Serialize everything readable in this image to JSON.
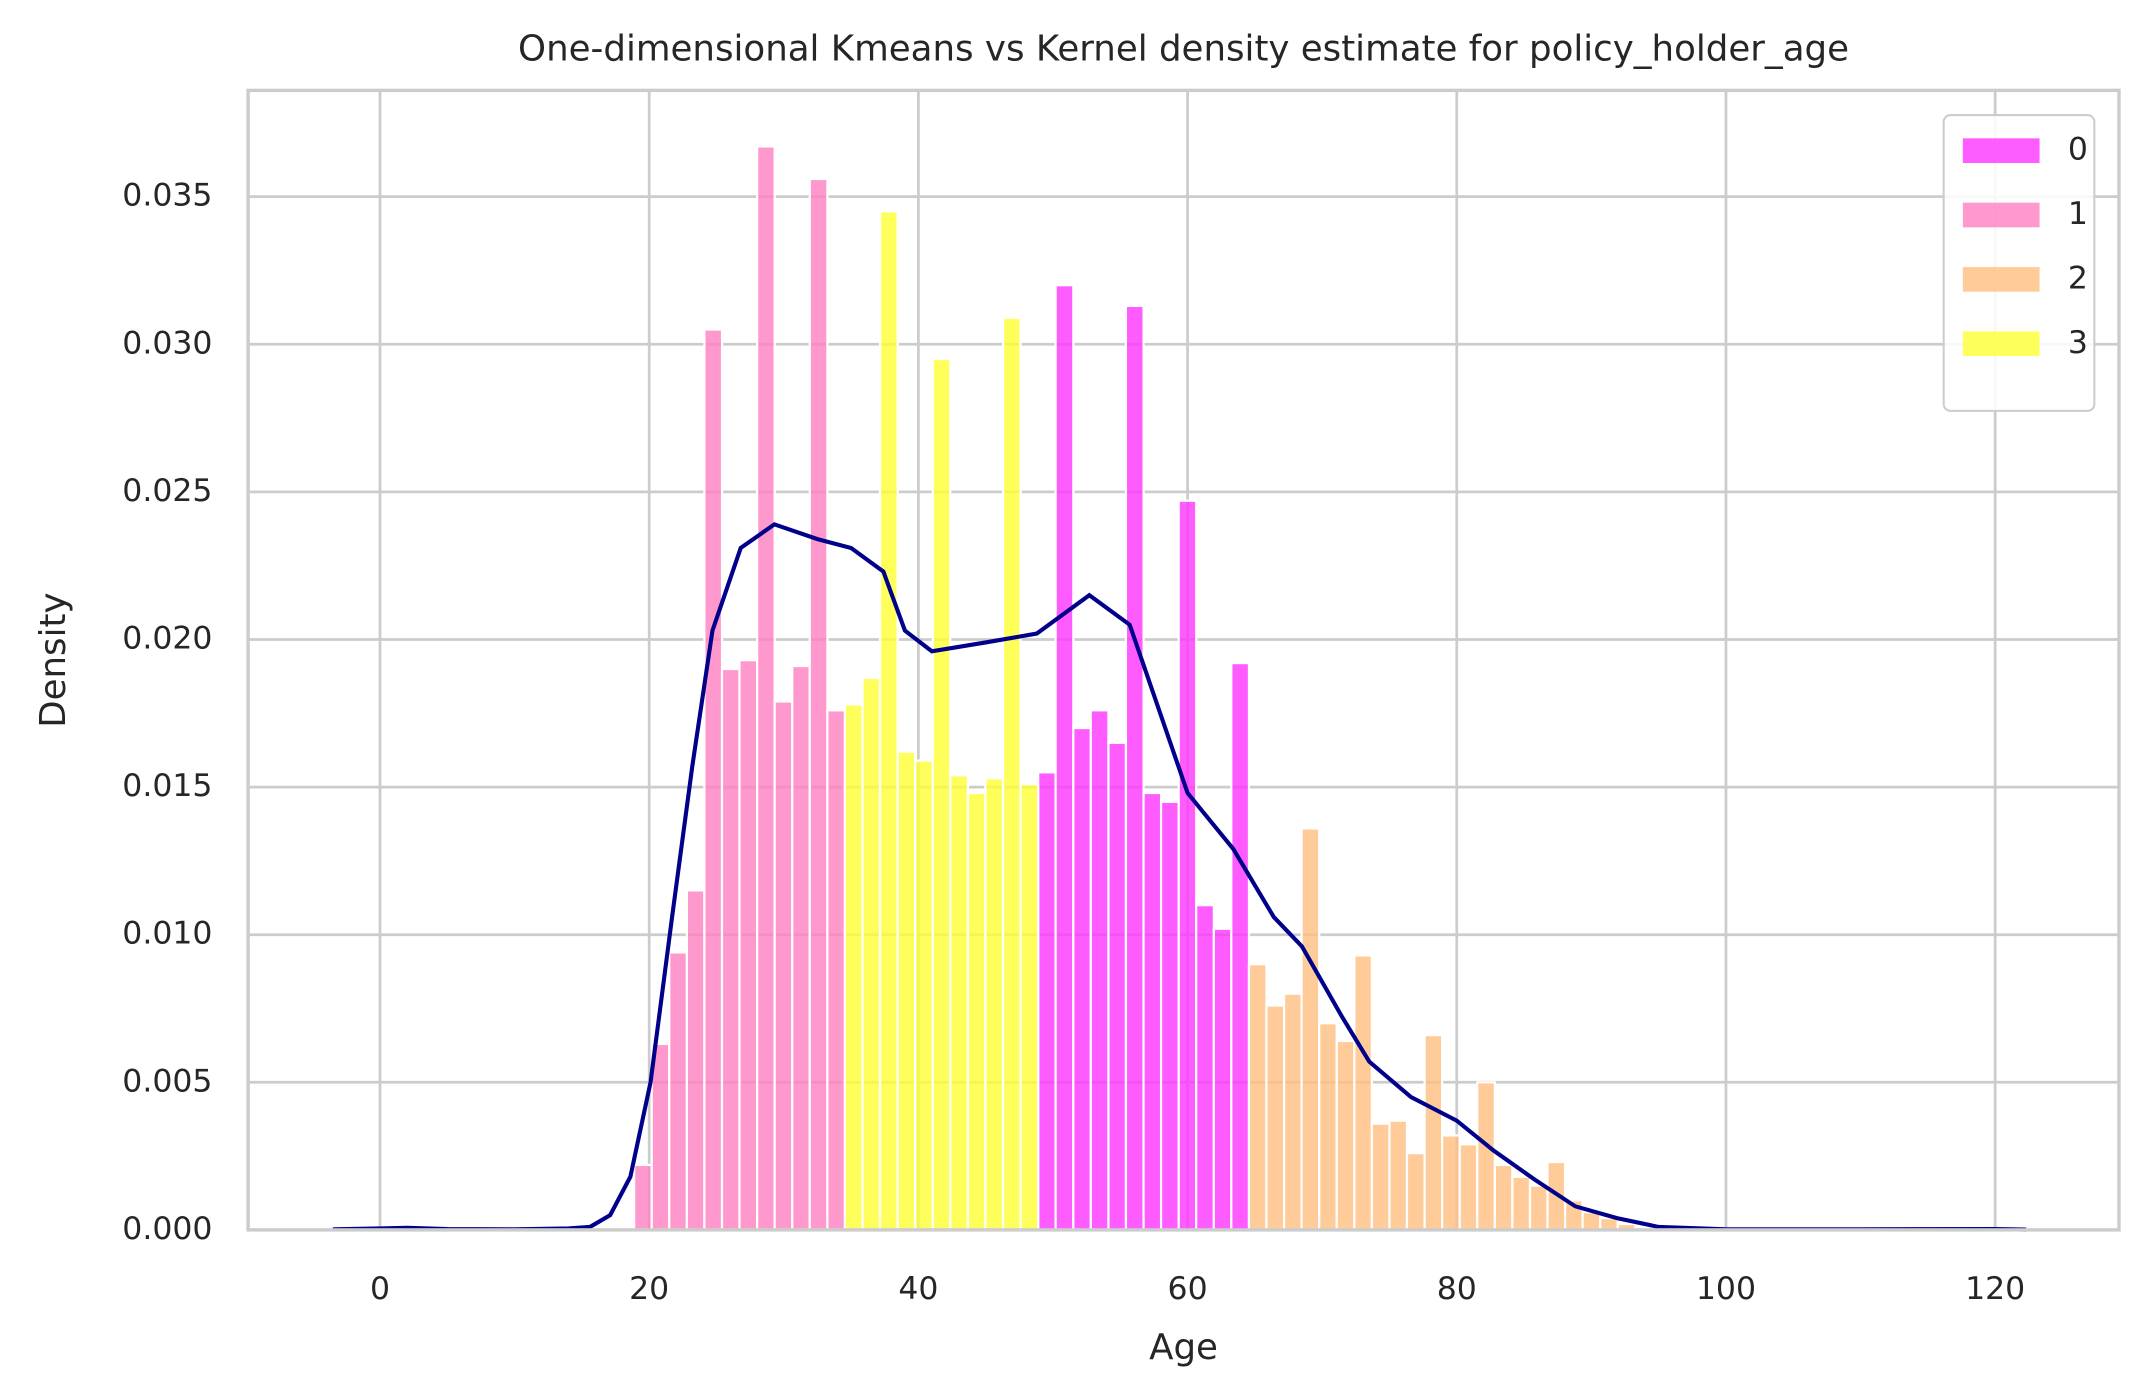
{
  "chart_data": {
    "type": "histogram",
    "title": "One-dimensional Kmeans vs Kernel density estimate for policy_holder_age",
    "x_label": "Age",
    "y_label": "Density",
    "xlim": [
      -9.8,
      129.2
    ],
    "ylim": [
      0,
      0.0386
    ],
    "xticks": [
      0,
      20,
      40,
      60,
      80,
      100,
      120
    ],
    "yticks": [
      {
        "value": 0,
        "label": "0.000"
      },
      {
        "value": 0.005,
        "label": "0.005"
      },
      {
        "value": 0.01,
        "label": "0.010"
      },
      {
        "value": 0.015,
        "label": "0.015"
      },
      {
        "value": 0.02,
        "label": "0.020"
      },
      {
        "value": 0.025,
        "label": "0.025"
      },
      {
        "value": 0.03,
        "label": "0.030"
      },
      {
        "value": 0.035,
        "label": "0.035"
      }
    ],
    "grid": true,
    "legend": "upper right",
    "series": [
      {
        "name": "0",
        "color": "#ff33ff",
        "bins": [
          48.9,
          50.2,
          51.51,
          52.81,
          54.12,
          55.42,
          56.73,
          58.03,
          59.34,
          60.64,
          61.95,
          63.25,
          64.56
        ],
        "values": [
          0.0155,
          0.032,
          0.017,
          0.0176,
          0.0165,
          0.0313,
          0.0148,
          0.0145,
          0.0247,
          0.011,
          0.0102,
          0.0192
        ]
      },
      {
        "name": "1",
        "color": "#ff80c0",
        "bins": [
          18.88,
          20.19,
          21.49,
          22.8,
          24.1,
          25.41,
          26.71,
          28.02,
          29.32,
          30.63,
          31.93,
          33.24,
          34.54
        ],
        "values": [
          0.0022,
          0.0063,
          0.0094,
          0.0115,
          0.0305,
          0.019,
          0.0193,
          0.0367,
          0.0179,
          0.0191,
          0.0356,
          0.0176
        ]
      },
      {
        "name": "2",
        "color": "#ffbf80",
        "bins": [
          64.56,
          65.86,
          67.17,
          68.47,
          69.78,
          71.08,
          72.39,
          73.69,
          75.0,
          76.3,
          77.61,
          78.91,
          80.22,
          81.52,
          82.83,
          84.13,
          85.44,
          86.74,
          88.05,
          89.35,
          90.66,
          91.96,
          93.27
        ],
        "values": [
          0.009,
          0.0076,
          0.008,
          0.0136,
          0.007,
          0.0064,
          0.0093,
          0.0036,
          0.0037,
          0.0026,
          0.0066,
          0.0032,
          0.0029,
          0.005,
          0.0022,
          0.0018,
          0.0015,
          0.0023,
          0.001,
          0.0006,
          0.0004,
          0.0002
        ]
      },
      {
        "name": "3",
        "color": "#ffff33",
        "bins": [
          34.54,
          35.85,
          37.15,
          38.46,
          39.76,
          41.07,
          42.37,
          43.68,
          44.98,
          46.29,
          47.59,
          48.9
        ],
        "values": [
          0.0178,
          0.0187,
          0.0345,
          0.0162,
          0.0159,
          0.0295,
          0.0154,
          0.0148,
          0.0153,
          0.0309,
          0.0151
        ]
      }
    ],
    "kde": {
      "color": "#00008b",
      "x": [
        -3.5,
        0,
        2,
        5,
        10,
        14,
        15.6,
        17.1,
        18.6,
        20.1,
        21.7,
        23.2,
        24.7,
        26.8,
        29.3,
        32.5,
        35,
        37.4,
        39,
        41,
        45,
        48.8,
        52.7,
        55.7,
        60,
        63.4,
        66.4,
        68.5,
        71.5,
        73.5,
        76.6,
        80,
        82.7,
        85.8,
        88.8,
        91.9,
        95,
        100,
        110,
        120,
        122.3
      ],
      "y": [
        2e-05,
        5e-05,
        7e-05,
        3e-05,
        2e-05,
        5e-05,
        0.0001,
        0.0005,
        0.0018,
        0.005,
        0.0106,
        0.0157,
        0.0203,
        0.0231,
        0.0239,
        0.0234,
        0.0231,
        0.0223,
        0.0203,
        0.0196,
        0.0199,
        0.0202,
        0.0215,
        0.0205,
        0.0148,
        0.0129,
        0.0106,
        0.0096,
        0.0072,
        0.0057,
        0.0045,
        0.0037,
        0.0027,
        0.0017,
        0.0008,
        0.0004,
        0.0001,
        2e-05,
        2e-05,
        3e-05,
        1e-05
      ]
    }
  }
}
